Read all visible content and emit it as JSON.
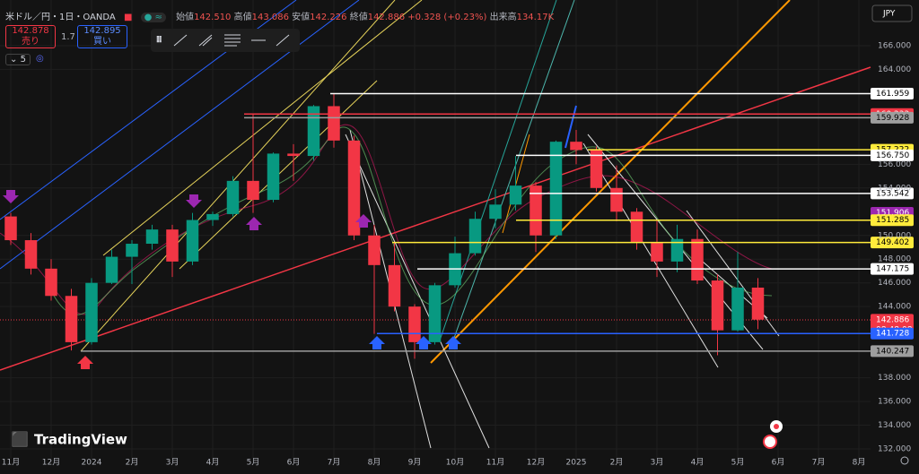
{
  "header": {
    "symbol": "米ドル／円・1日・OANDA",
    "open_label": "始値",
    "open": "142.510",
    "high_label": "高値",
    "high": "143.086",
    "low_label": "安値",
    "low": "142.226",
    "close_label": "終値",
    "close": "142.886",
    "change": "+0.328 (+0.23%)",
    "volume_label": "出来高",
    "volume": "134.17K",
    "sell_price": "142.878",
    "sell_label": "売り",
    "spread": "1.7",
    "buy_price": "142.895",
    "buy_label": "買い",
    "indicator_count": "5",
    "logo": "TradingView"
  },
  "chart_data": {
    "type": "candlestick",
    "currency": "JPY",
    "categories": [
      "11月",
      null,
      "12月",
      null,
      "2024",
      null,
      "2月",
      null,
      "3月",
      null,
      "4月",
      null,
      "5月",
      null,
      "6月",
      null,
      "7月",
      null,
      "8月",
      null,
      "9月",
      null,
      "10月",
      null,
      "11月",
      null,
      "12月",
      null,
      "2025",
      null,
      "2月",
      null,
      "3月",
      null,
      "4月",
      null,
      "5月",
      null,
      "6月",
      null,
      "7月",
      null,
      "8月"
    ],
    "open": [
      151.6,
      149.6,
      147.2,
      144.9,
      141.0,
      146.0,
      148.2,
      149.3,
      150.5,
      147.8,
      151.3,
      151.8,
      154.6,
      153.0,
      156.9,
      156.7,
      160.9,
      158.0,
      150.0,
      147.5,
      144.0,
      141.0,
      145.8,
      148.5,
      151.4,
      152.6,
      154.2,
      150.0,
      157.9,
      157.2,
      154.0,
      152.0,
      149.4,
      147.8,
      149.7,
      146.2,
      142.0,
      145.6,
      null,
      null,
      null,
      null,
      null
    ],
    "high": [
      151.9,
      150.2,
      148.0,
      145.5,
      146.4,
      148.8,
      149.6,
      150.9,
      150.9,
      151.9,
      152.0,
      155.0,
      160.2,
      157.0,
      157.7,
      161.0,
      161.95,
      158.4,
      150.9,
      149.4,
      144.2,
      146.0,
      149.9,
      152.0,
      153.9,
      156.7,
      154.5,
      158.0,
      158.9,
      157.5,
      155.9,
      152.3,
      151.3,
      150.9,
      150.5,
      146.7,
      148.6,
      146.4,
      null,
      null,
      null,
      null,
      null
    ],
    "low": [
      149.2,
      146.7,
      144.5,
      140.3,
      140.8,
      145.9,
      145.9,
      148.8,
      146.5,
      147.5,
      150.8,
      151.6,
      151.9,
      152.8,
      154.6,
      156.3,
      157.4,
      149.6,
      141.7,
      143.6,
      139.6,
      140.8,
      145.6,
      148.3,
      150.6,
      152.1,
      148.6,
      149.7,
      156.0,
      153.7,
      151.2,
      148.8,
      146.5,
      146.9,
      145.9,
      139.9,
      141.9,
      142.1,
      null,
      null,
      null,
      null,
      null
    ],
    "close": [
      149.6,
      147.2,
      144.9,
      141.0,
      146.0,
      148.2,
      149.3,
      150.5,
      147.8,
      151.3,
      151.8,
      154.6,
      153.0,
      156.9,
      156.7,
      160.9,
      158.0,
      150.0,
      147.5,
      144.0,
      141.0,
      145.8,
      148.5,
      151.4,
      152.6,
      154.2,
      150.0,
      157.9,
      157.2,
      154.0,
      152.0,
      149.4,
      147.8,
      149.7,
      146.2,
      142.0,
      145.6,
      142.9,
      null,
      null,
      null,
      null,
      null
    ],
    "up_color": "#089981",
    "down_color": "#f23645",
    "ylim": [
      131.17,
      169.85
    ],
    "yticks": [
      {
        "value": 166,
        "label": "166.000"
      },
      {
        "value": 164,
        "label": "164.000"
      },
      {
        "value": 156,
        "label": "156.000"
      },
      {
        "value": 154,
        "label": "154.000"
      },
      {
        "value": 150,
        "label": "150.000"
      },
      {
        "value": 148,
        "label": "148.000"
      },
      {
        "value": 146,
        "label": "146.000"
      },
      {
        "value": 144,
        "label": "144.000"
      },
      {
        "value": 138,
        "label": "138.000"
      },
      {
        "value": 136,
        "label": "136.000"
      },
      {
        "value": 134,
        "label": "134.000"
      },
      {
        "value": 132,
        "label": "132.000"
      }
    ],
    "levels": [
      {
        "price": 161.959,
        "color": "#ffffff"
      },
      {
        "price": 160.233,
        "color": "#f23645"
      },
      {
        "price": 159.928,
        "color": "#9e9e9e"
      },
      {
        "price": 157.222,
        "color": "#ffeb3b"
      },
      {
        "price": {
          "value": 156.75,
          "label": "156.750"
        },
        "color": "#ffffff"
      },
      {
        "price": 153.542,
        "color": "#ffffff"
      },
      {
        "price": 151.906,
        "color": "#9c27b0"
      },
      {
        "price": 151.285,
        "color": "#ffeb3b"
      },
      {
        "price": 149.402,
        "color": "#ffeb3b"
      },
      {
        "price": 147.175,
        "color": "#ffffff"
      },
      {
        "price": 142.886,
        "color": "#f23645",
        "time": "08:48:08"
      },
      {
        "price": 141.728,
        "color": "#2962ff"
      },
      {
        "price": 140.247,
        "color": "#9e9e9e"
      }
    ]
  }
}
